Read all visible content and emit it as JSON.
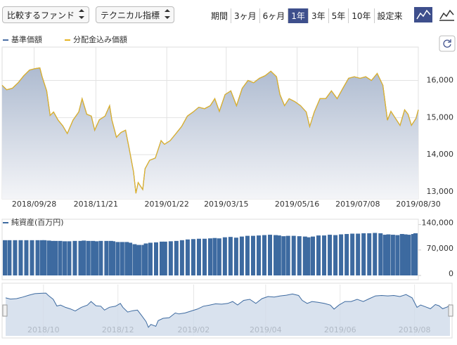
{
  "controls": {
    "compare": "比較するファンド",
    "technical": "テクニカル指標",
    "period_label": "期間",
    "periods": [
      "3ヶ月",
      "6ヶ月",
      "1年",
      "3年",
      "5年",
      "10年",
      "設定来"
    ],
    "active_period": 2
  },
  "chart_data": [
    {
      "type": "line",
      "grid": true,
      "x": [
        "2018/08/31",
        "2018/09/04",
        "2018/09/09",
        "2018/09/14",
        "2018/09/19",
        "2018/09/24",
        "2018/09/29",
        "2018/10/03",
        "2018/10/05",
        "2018/10/09",
        "2018/10/12",
        "2018/10/15",
        "2018/10/19",
        "2018/10/23",
        "2018/10/27",
        "2018/11/01",
        "2018/11/06",
        "2018/11/09",
        "2018/11/13",
        "2018/11/17",
        "2018/11/20",
        "2018/11/24",
        "2018/11/29",
        "2018/12/03",
        "2018/12/05",
        "2018/12/09",
        "2018/12/13",
        "2018/12/17",
        "2018/12/20",
        "2018/12/24",
        "2018/12/26",
        "2018/12/28",
        "2019/01/01",
        "2019/01/03",
        "2019/01/07",
        "2019/01/12",
        "2019/01/17",
        "2019/01/20",
        "2019/01/25",
        "2019/01/30",
        "2019/02/04",
        "2019/02/09",
        "2019/02/14",
        "2019/02/19",
        "2019/02/24",
        "2019/03/01",
        "2019/03/05",
        "2019/03/09",
        "2019/03/14",
        "2019/03/19",
        "2019/03/24",
        "2019/03/29",
        "2019/04/03",
        "2019/04/08",
        "2019/04/13",
        "2019/04/18",
        "2019/04/23",
        "2019/04/28",
        "2019/05/01",
        "2019/05/05",
        "2019/05/09",
        "2019/05/14",
        "2019/05/19",
        "2019/05/24",
        "2019/05/27",
        "2019/05/31",
        "2019/06/05",
        "2019/06/10",
        "2019/06/15",
        "2019/06/20",
        "2019/06/25",
        "2019/06/30",
        "2019/07/05",
        "2019/07/10",
        "2019/07/15",
        "2019/07/20",
        "2019/07/25",
        "2019/07/30",
        "2019/08/03",
        "2019/08/06",
        "2019/08/10",
        "2019/08/14",
        "2019/08/18",
        "2019/08/21",
        "2019/08/24",
        "2019/08/28",
        "2019/08/30"
      ],
      "series": [
        {
          "name": "基準価額",
          "color": "#4a6fa5",
          "values": [
            15870,
            15750,
            15790,
            15940,
            16130,
            16280,
            16320,
            16340,
            16100,
            15720,
            15060,
            15150,
            14930,
            14780,
            14570,
            14930,
            15150,
            15510,
            15090,
            15040,
            14660,
            14940,
            15040,
            15320,
            14940,
            14470,
            14600,
            14660,
            14190,
            13530,
            12960,
            13250,
            13060,
            13620,
            13850,
            13910,
            14380,
            14280,
            14380,
            14570,
            14760,
            15040,
            15150,
            15280,
            15240,
            15320,
            15510,
            15170,
            15620,
            15720,
            15320,
            15790,
            16000,
            15940,
            16060,
            16130,
            16250,
            16100,
            15620,
            15320,
            15510,
            15430,
            15320,
            15150,
            14760,
            15150,
            15510,
            15510,
            15720,
            15510,
            15790,
            16060,
            16100,
            16060,
            16100,
            16000,
            16190,
            15870,
            14930,
            15170,
            14980,
            14790,
            15210,
            15090,
            14790,
            14980,
            15210
          ]
        },
        {
          "name": "分配金込み価額",
          "color": "#e6b422",
          "values": [
            15870,
            15750,
            15790,
            15940,
            16130,
            16280,
            16320,
            16340,
            16100,
            15720,
            15060,
            15150,
            14930,
            14780,
            14570,
            14930,
            15150,
            15510,
            15090,
            15040,
            14660,
            14940,
            15040,
            15320,
            14940,
            14470,
            14600,
            14660,
            14190,
            13530,
            12960,
            13250,
            13060,
            13620,
            13850,
            13910,
            14380,
            14280,
            14380,
            14570,
            14760,
            15040,
            15150,
            15280,
            15240,
            15320,
            15510,
            15170,
            15620,
            15720,
            15320,
            15790,
            16000,
            15940,
            16060,
            16130,
            16250,
            16100,
            15620,
            15320,
            15510,
            15430,
            15320,
            15150,
            14760,
            15150,
            15510,
            15510,
            15720,
            15510,
            15790,
            16060,
            16100,
            16060,
            16100,
            16000,
            16190,
            15870,
            14930,
            15170,
            14980,
            14790,
            15210,
            15090,
            14790,
            14980,
            15210
          ]
        }
      ],
      "xlim": [
        "2018/08/31",
        "2019/08/30"
      ],
      "xticks": [
        "2018/09/28",
        "2018/11/21",
        "2019/01/22",
        "2019/03/15",
        "2019/05/16",
        "2019/07/08",
        "2019/08/30"
      ],
      "ylim": [
        12810,
        16900
      ],
      "yticks": [
        {
          "value": 13000,
          "label": "13,000"
        },
        {
          "value": 14000,
          "label": "14,000"
        },
        {
          "value": 15000,
          "label": "15,000"
        },
        {
          "value": 16000,
          "label": "16,000"
        }
      ]
    },
    {
      "type": "bar",
      "title": "純資産(百万円)",
      "color": "#3d6aa0",
      "values": [
        97000,
        97000,
        97000,
        97000,
        97000,
        97000,
        97000,
        97000,
        97000,
        96000,
        95000,
        95000,
        95000,
        94000,
        94000,
        95000,
        95000,
        96000,
        95000,
        95000,
        94000,
        95000,
        95000,
        95000,
        94000,
        92000,
        92000,
        92000,
        90000,
        86000,
        83000,
        84000,
        84000,
        88000,
        90000,
        91000,
        93000,
        93000,
        94000,
        95000,
        97000,
        99000,
        100000,
        101000,
        101000,
        102000,
        103000,
        102000,
        105000,
        106000,
        104000,
        107000,
        109000,
        109000,
        110000,
        111000,
        112000,
        111000,
        110000,
        108000,
        109000,
        109000,
        108000,
        107000,
        105000,
        107000,
        110000,
        110000,
        112000,
        111000,
        113000,
        114000,
        115000,
        115000,
        116000,
        116000,
        117000,
        116000,
        112000,
        113000,
        112000,
        111000,
        114000,
        113000,
        112000,
        114000,
        116000
      ],
      "ylim": [
        0,
        145000
      ],
      "yticks": [
        0,
        {
          "value": 70000,
          "label": "70,000"
        },
        {
          "value": 140000,
          "label": "140,000"
        }
      ]
    },
    {
      "type": "navigator",
      "color": "#3d6aa0",
      "xlim": [
        "2018/08/31",
        "2019/08/30"
      ],
      "xticks": [
        "2018/10",
        "2018/12",
        "2019/02",
        "2019/04",
        "2019/06",
        "2019/08"
      ]
    }
  ]
}
